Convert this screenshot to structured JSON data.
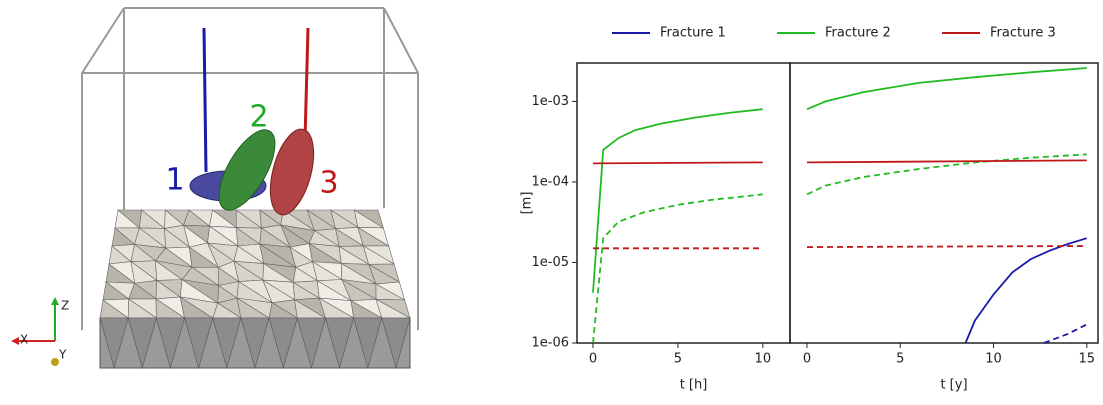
{
  "scene": {
    "fracture_labels": [
      "1",
      "2",
      "3"
    ],
    "axis_labels": [
      "Z",
      "X",
      "Y"
    ]
  },
  "chart_data": [
    {
      "type": "line",
      "xlabel": "t [h]",
      "ylabel": "[m]",
      "log_y": true,
      "xlim": [
        -0.94,
        11.6
      ],
      "xticks": [
        0,
        5,
        10
      ],
      "ylim": [
        1e-06,
        0.003
      ],
      "yticks": [
        {
          "value": 1e-06,
          "label": "1e-06"
        },
        {
          "value": 1e-05,
          "label": "1e-05"
        },
        {
          "value": 0.0001,
          "label": "1e-04"
        },
        {
          "value": 0.001,
          "label": "1e-03"
        }
      ],
      "series": [
        {
          "name": "Fracture 2",
          "color": "#22bb22",
          "x": [
            0,
            0.6,
            1.5,
            2.5,
            4,
            6,
            8,
            10
          ],
          "values": [
            4.2e-06,
            0.00025,
            0.00035,
            0.00044,
            0.00053,
            0.00063,
            0.00072,
            0.0008
          ]
        },
        {
          "name": "Fracture 3",
          "color": "#c01818",
          "x": [
            0,
            10
          ],
          "values": [
            0.00017,
            0.000175
          ]
        },
        {
          "color": "#22bb22",
          "dashed": true,
          "x": [
            0,
            0.6,
            1.5,
            3,
            5,
            7,
            10
          ],
          "values": [
            1e-06,
            2e-05,
            3.2e-05,
            4.2e-05,
            5.2e-05,
            6e-05,
            7e-05
          ]
        },
        {
          "color": "#c01818",
          "dashed": true,
          "x": [
            0,
            10
          ],
          "values": [
            1.5e-05,
            1.5e-05
          ]
        }
      ]
    },
    {
      "type": "line",
      "xlabel": "t [y]",
      "log_y": true,
      "xlim": [
        -0.91,
        15.6
      ],
      "xticks": [
        0,
        5,
        10,
        15
      ],
      "ylim": [
        1e-06,
        0.003
      ],
      "series": [
        {
          "name": "Fracture 1",
          "color": "#1a1aaa",
          "x": [
            8.5,
            9,
            10,
            11,
            12,
            13,
            14,
            15
          ],
          "values": [
            1e-06,
            1.9e-06,
            4e-06,
            7.5e-06,
            1.1e-05,
            1.4e-05,
            1.7e-05,
            2e-05
          ]
        },
        {
          "color": "#1a1aaa",
          "dashed": true,
          "x": [
            12.7,
            14,
            15
          ],
          "values": [
            1e-06,
            1.3e-06,
            1.7e-06
          ]
        },
        {
          "color": "#22bb22",
          "x": [
            0,
            1,
            3,
            6,
            9,
            12,
            15
          ],
          "values": [
            0.0008,
            0.001,
            0.0013,
            0.0017,
            0.002,
            0.0023,
            0.0026
          ]
        },
        {
          "color": "#22bb22",
          "dashed": true,
          "x": [
            0,
            1,
            3,
            6,
            9,
            12,
            15
          ],
          "values": [
            7e-05,
            9e-05,
            0.000115,
            0.000145,
            0.000175,
            0.0002,
            0.00022
          ]
        },
        {
          "color": "#c01818",
          "x": [
            0,
            15
          ],
          "values": [
            0.000175,
            0.000185
          ]
        },
        {
          "color": "#c01818",
          "dashed": true,
          "x": [
            0,
            15
          ],
          "values": [
            1.55e-05,
            1.6e-05
          ]
        }
      ]
    }
  ]
}
